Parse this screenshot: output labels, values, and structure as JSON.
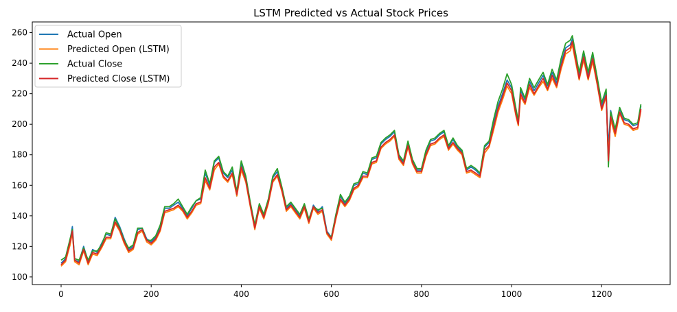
{
  "chart_data": {
    "type": "line",
    "title": "LSTM Predicted vs Actual Stock Prices",
    "xlabel": "",
    "ylabel": "",
    "xlim": [
      -64,
      1352
    ],
    "ylim": [
      95,
      267
    ],
    "x_ticks": [
      0,
      200,
      400,
      600,
      800,
      1000,
      1200
    ],
    "y_ticks": [
      100,
      120,
      140,
      160,
      180,
      200,
      220,
      240,
      260
    ],
    "x_tick_labels": [
      "0",
      "200",
      "400",
      "600",
      "800",
      "1000",
      "1200"
    ],
    "y_tick_labels": [
      "100",
      "120",
      "140",
      "160",
      "180",
      "200",
      "220",
      "240",
      "260"
    ],
    "grid": false,
    "legend_position": "upper-left",
    "x": [
      0,
      10,
      20,
      25,
      30,
      40,
      50,
      60,
      70,
      80,
      90,
      100,
      110,
      120,
      130,
      140,
      150,
      160,
      170,
      180,
      190,
      200,
      210,
      220,
      230,
      240,
      250,
      260,
      270,
      280,
      290,
      300,
      310,
      320,
      330,
      340,
      350,
      360,
      370,
      380,
      390,
      400,
      410,
      420,
      430,
      440,
      450,
      460,
      470,
      480,
      490,
      500,
      510,
      520,
      530,
      540,
      550,
      560,
      570,
      580,
      590,
      600,
      610,
      620,
      630,
      640,
      650,
      660,
      670,
      680,
      690,
      700,
      710,
      720,
      730,
      740,
      750,
      760,
      770,
      780,
      790,
      800,
      810,
      820,
      830,
      840,
      850,
      860,
      870,
      880,
      890,
      900,
      910,
      920,
      930,
      940,
      950,
      960,
      970,
      980,
      990,
      1000,
      1010,
      1015,
      1020,
      1030,
      1040,
      1050,
      1060,
      1070,
      1080,
      1090,
      1100,
      1110,
      1120,
      1130,
      1135,
      1140,
      1150,
      1160,
      1170,
      1180,
      1190,
      1200,
      1210,
      1215,
      1220,
      1230,
      1240,
      1250,
      1260,
      1270,
      1280,
      1287
    ],
    "series": [
      {
        "name": "Actual Open",
        "color": "#1f77b4",
        "values": [
          109,
          112,
          124,
          133,
          111,
          110,
          120,
          110,
          118,
          116,
          122,
          128,
          127,
          139,
          133,
          125,
          118,
          120,
          131,
          132,
          125,
          123,
          126,
          133,
          145,
          145,
          147,
          149,
          145,
          140,
          145,
          150,
          151,
          168,
          160,
          175,
          178,
          168,
          165,
          170,
          153,
          174,
          165,
          148,
          133,
          147,
          140,
          150,
          165,
          169,
          158,
          145,
          148,
          144,
          140,
          147,
          137,
          147,
          143,
          146,
          130,
          126,
          140,
          153,
          148,
          152,
          160,
          161,
          168,
          167,
          177,
          178,
          187,
          190,
          192,
          195,
          179,
          175,
          188,
          176,
          170,
          170,
          182,
          189,
          190,
          193,
          195,
          185,
          190,
          185,
          182,
          170,
          172,
          170,
          167,
          185,
          188,
          200,
          212,
          220,
          229,
          224,
          208,
          201,
          222,
          216,
          228,
          222,
          227,
          232,
          225,
          234,
          227,
          240,
          250,
          252,
          256,
          248,
          232,
          246,
          232,
          245,
          229,
          212,
          221,
          185,
          209,
          196,
          210,
          203,
          202,
          199,
          200,
          212
        ]
      },
      {
        "name": "Predicted Open (LSTM)",
        "color": "#ff7f0e",
        "values": [
          107,
          110,
          121,
          129,
          110,
          108,
          117,
          108,
          115,
          114,
          119,
          125,
          125,
          135,
          130,
          122,
          116,
          118,
          128,
          130,
          123,
          121,
          124,
          130,
          142,
          143,
          144,
          146,
          143,
          138,
          142,
          147,
          148,
          163,
          157,
          170,
          174,
          165,
          162,
          167,
          153,
          170,
          162,
          146,
          131,
          145,
          138,
          148,
          162,
          166,
          156,
          143,
          146,
          142,
          138,
          145,
          135,
          145,
          141,
          143,
          128,
          124,
          138,
          150,
          146,
          150,
          157,
          159,
          165,
          165,
          174,
          175,
          184,
          187,
          189,
          192,
          177,
          173,
          185,
          174,
          168,
          168,
          179,
          186,
          187,
          190,
          192,
          183,
          187,
          183,
          180,
          168,
          169,
          167,
          165,
          181,
          185,
          196,
          208,
          216,
          225,
          220,
          205,
          199,
          218,
          213,
          224,
          219,
          224,
          228,
          222,
          230,
          224,
          236,
          246,
          248,
          252,
          244,
          229,
          242,
          229,
          241,
          226,
          209,
          218,
          180,
          203,
          192,
          207,
          200,
          199,
          196,
          197,
          209
        ]
      },
      {
        "name": "Actual Close",
        "color": "#2ca02c",
        "values": [
          111,
          113,
          125,
          131,
          112,
          111,
          119,
          111,
          117,
          117,
          121,
          129,
          128,
          138,
          132,
          124,
          119,
          121,
          132,
          132,
          124,
          124,
          127,
          134,
          146,
          146,
          148,
          151,
          146,
          141,
          146,
          150,
          152,
          170,
          161,
          176,
          179,
          169,
          166,
          172,
          156,
          176,
          166,
          149,
          134,
          148,
          141,
          151,
          166,
          171,
          159,
          146,
          149,
          145,
          141,
          148,
          138,
          146,
          144,
          145,
          129,
          126,
          141,
          154,
          149,
          153,
          161,
          162,
          169,
          168,
          178,
          179,
          188,
          191,
          193,
          196,
          180,
          176,
          189,
          177,
          171,
          171,
          183,
          190,
          191,
          194,
          196,
          186,
          191,
          186,
          183,
          171,
          173,
          171,
          168,
          186,
          189,
          203,
          215,
          223,
          233,
          226,
          210,
          202,
          224,
          217,
          230,
          224,
          229,
          234,
          226,
          236,
          229,
          243,
          253,
          255,
          258,
          250,
          234,
          248,
          234,
          247,
          231,
          214,
          223,
          172,
          208,
          197,
          211,
          204,
          203,
          200,
          201,
          213
        ]
      },
      {
        "name": "Predicted Close (LSTM)",
        "color": "#d62728",
        "values": [
          108,
          111,
          123,
          130,
          111,
          109,
          118,
          109,
          116,
          115,
          120,
          126,
          126,
          136,
          131,
          123,
          117,
          119,
          129,
          131,
          124,
          122,
          125,
          131,
          143,
          144,
          145,
          147,
          144,
          139,
          143,
          148,
          149,
          165,
          158,
          172,
          175,
          166,
          163,
          168,
          154,
          172,
          163,
          147,
          132,
          146,
          139,
          149,
          163,
          167,
          157,
          144,
          147,
          143,
          139,
          146,
          136,
          146,
          142,
          144,
          129,
          125,
          139,
          151,
          147,
          151,
          158,
          160,
          166,
          166,
          175,
          176,
          185,
          188,
          190,
          193,
          178,
          174,
          186,
          175,
          169,
          169,
          180,
          187,
          188,
          191,
          193,
          184,
          188,
          184,
          181,
          169,
          170,
          168,
          166,
          183,
          186,
          198,
          210,
          218,
          227,
          222,
          206,
          200,
          220,
          214,
          226,
          220,
          225,
          230,
          223,
          232,
          225,
          238,
          248,
          250,
          254,
          246,
          230,
          244,
          230,
          243,
          227,
          210,
          219,
          176,
          205,
          194,
          208,
          201,
          200,
          197,
          198,
          210
        ]
      }
    ]
  }
}
